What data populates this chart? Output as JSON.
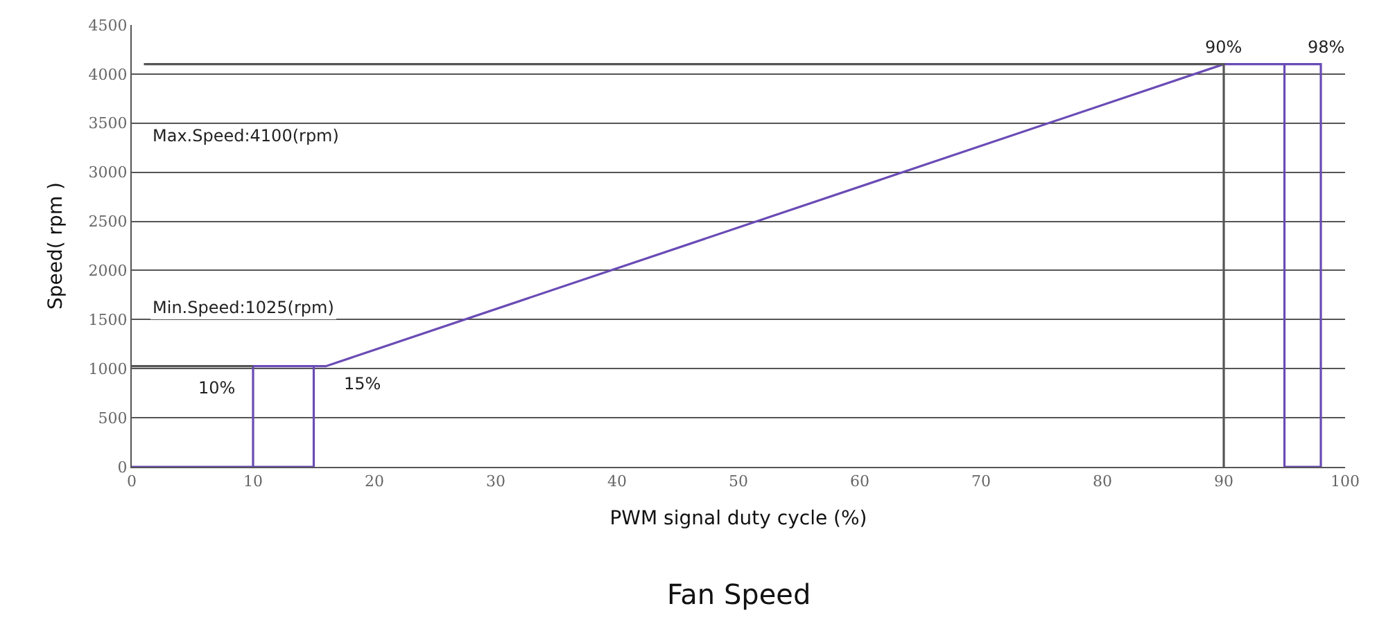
{
  "chart_data": {
    "type": "line",
    "title": "Fan Speed",
    "xlabel": "PWM signal duty cycle (%)",
    "ylabel": "Speed( rpm )",
    "xlim": [
      0,
      100
    ],
    "xticks": [
      0,
      10,
      20,
      30,
      40,
      50,
      60,
      70,
      80,
      90,
      100
    ],
    "ylim": [
      0,
      4500
    ],
    "yticks": [
      0,
      500,
      1000,
      1500,
      2000,
      2500,
      3000,
      3500,
      4000,
      4500
    ],
    "grid": "y",
    "marker": "none",
    "line_style": "solid",
    "series": [
      {
        "color": "#6a4bb5",
        "x": [
          0,
          15,
          15,
          10,
          10
        ],
        "values": [
          0,
          0,
          1025,
          1025,
          0
        ]
      },
      {
        "color": "#6a4bb5",
        "x": [
          15,
          16,
          90,
          98,
          98,
          95,
          95
        ],
        "values": [
          1025,
          1025,
          4100,
          4100,
          0,
          0,
          4100
        ]
      },
      {
        "color": "#555555",
        "x": [
          1,
          90,
          90
        ],
        "values": [
          4100,
          4100,
          0
        ]
      },
      {
        "color": "#555555",
        "x": [
          0,
          10
        ],
        "values": [
          1025,
          1025
        ]
      }
    ],
    "annotations": [
      "Max.Speed:4100(rpm)",
      "Min.Speed:1025(rpm)",
      {
        "text": "10%",
        "x": 7,
        "y": 800
      },
      {
        "text": "15%",
        "x": 19,
        "y": 850
      },
      {
        "text": "90%",
        "x": 90,
        "y": 4280
      },
      {
        "text": "98%",
        "x": 98.5,
        "y": 4280
      }
    ]
  }
}
